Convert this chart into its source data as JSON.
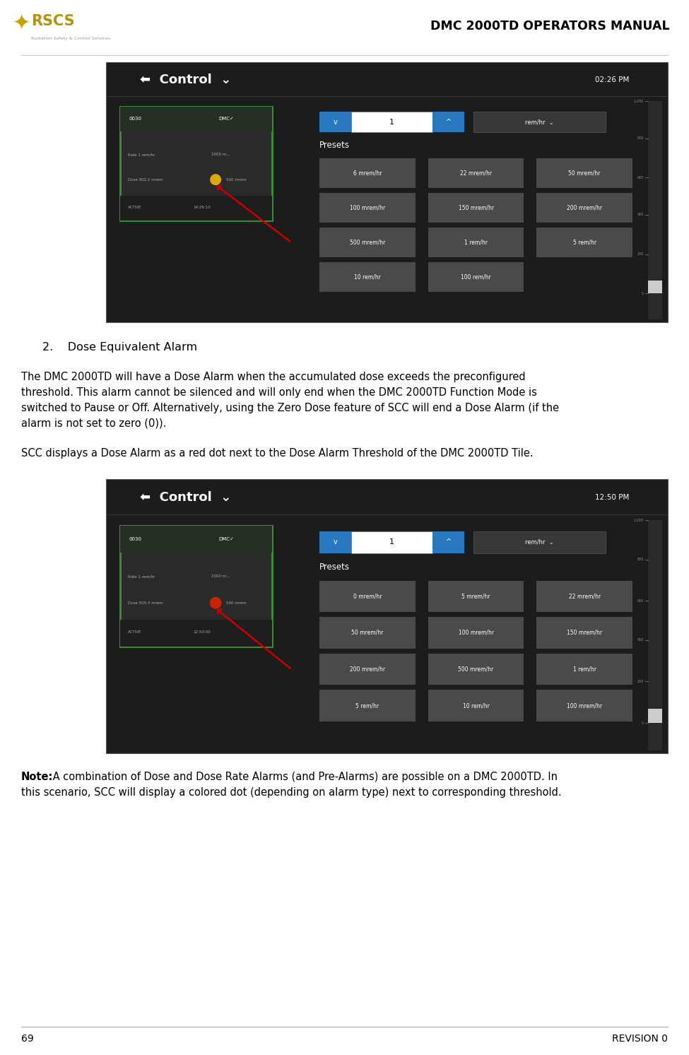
{
  "title": "DMC 2000TD OPERATORS MANUAL",
  "page_number": "69",
  "revision": "REVISION 0",
  "section_number": "2.",
  "section_title": "Dose Equivalent Alarm",
  "para1_lines": [
    "The DMC 2000TD will have a Dose Alarm when the accumulated dose exceeds the preconfigured",
    "threshold. This alarm cannot be silenced and will only end when the DMC 2000TD Function Mode is",
    "switched to Pause or Off. Alternatively, using the Zero Dose feature of SCC will end a Dose Alarm (if the",
    "alarm is not set to zero (0))."
  ],
  "paragraph2": "SCC displays a Dose Alarm as a red dot next to the Dose Alarm Threshold of the DMC 2000TD Tile.",
  "note_bold": "Note:",
  "note_rest": " A combination of Dose and Dose Rate Alarms (and Pre-Alarms) are possible on a DMC 2000TD. In",
  "note_line2": "this scenario, SCC will display a colored dot (depending on alarm type) next to corresponding threshold.",
  "img1_time": "02:26 PM",
  "img2_time": "12:50 PM",
  "preset_rows_1": [
    [
      "6 mrem/hr",
      "22 mrem/hr",
      "50 mrem/hr"
    ],
    [
      "100 mrem/hr",
      "150 mrem/hr",
      "200 mrem/hr"
    ],
    [
      "500 mrem/hr",
      "1 rem/hr",
      "5 rem/hr"
    ],
    [
      "10 rem/hr",
      "100 rem/hr",
      ""
    ]
  ],
  "preset_rows_2": [
    [
      "0 mrem/hr",
      "5 mrem/hr",
      "22 mrem/hr"
    ],
    [
      "50 mrem/hr",
      "100 mrem/hr",
      "150 mrem/hr"
    ],
    [
      "200 mrem/hr",
      "500 mrem/hr",
      "1 rem/hr"
    ],
    [
      "5 rem/hr",
      "10 rem/hr",
      "100 mrem/hr"
    ]
  ],
  "bg_color": "#ffffff",
  "screen_bg": "#1c1c1c",
  "tile_border_green": "#3a8a3a",
  "preset_btn_color": "#4a4a4a",
  "blue_btn_color": "#2878c0",
  "text_white": "#ffffff",
  "text_black": "#000000",
  "text_gray": "#aaaaaa",
  "arrow_color": "#cc0000",
  "dot_yellow": "#ddaa00",
  "dot_red": "#cc2200",
  "scrollbar_bg": "#2a2a2a",
  "scrollbar_thumb": "#888888",
  "header_sep_color": "#cccccc",
  "footer_sep_color": "#aaaaaa"
}
